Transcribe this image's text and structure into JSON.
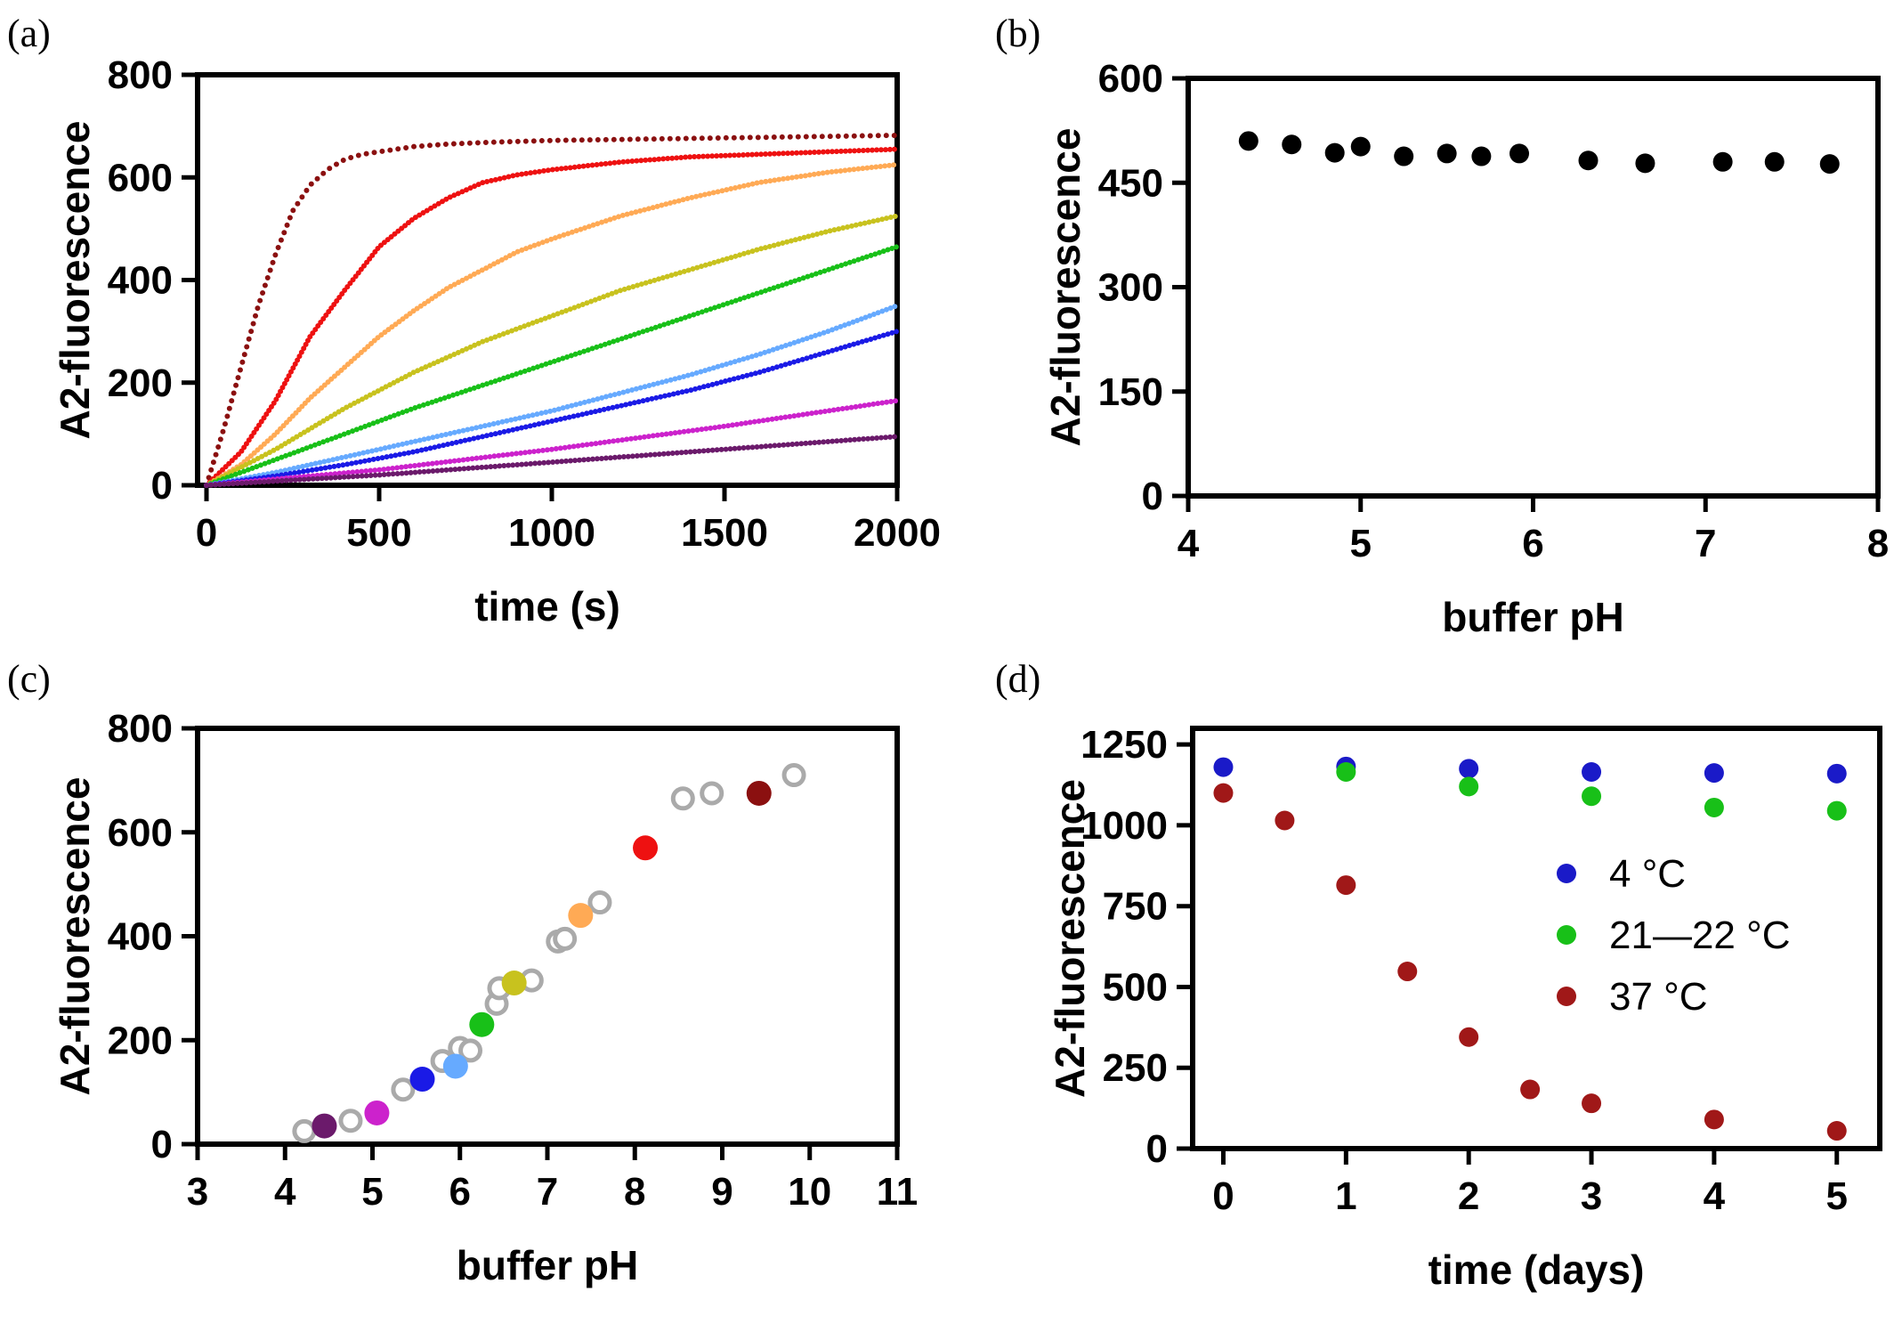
{
  "figure": {
    "panels": [
      {
        "label": "(a)"
      },
      {
        "label": "(b)"
      },
      {
        "label": "(c)"
      },
      {
        "label": "(d)"
      }
    ]
  },
  "chart_data": [
    {
      "panel": "(a)",
      "type": "line",
      "xlabel": "time (s)",
      "ylabel": "A2-fluorescence",
      "xlim": [
        0,
        2000
      ],
      "ylim": [
        0,
        800
      ],
      "xticks": [
        0,
        500,
        1000,
        1500,
        2000
      ],
      "yticks": [
        0,
        200,
        400,
        600,
        800
      ],
      "grid": false,
      "series": [
        {
          "color": "#8b1010",
          "x": [
            0,
            50,
            100,
            150,
            200,
            250,
            300,
            350,
            400,
            450,
            500,
            600,
            700,
            800,
            900,
            1000,
            1200,
            1400,
            1600,
            1800,
            2000
          ],
          "values": [
            0,
            110,
            230,
            350,
            450,
            535,
            585,
            615,
            635,
            645,
            650,
            660,
            665,
            668,
            670,
            672,
            674,
            676,
            678,
            680,
            682
          ]
        },
        {
          "color": "#ee1111",
          "x": [
            0,
            100,
            200,
            300,
            400,
            500,
            600,
            700,
            800,
            900,
            1000,
            1200,
            1400,
            1600,
            1800,
            2000
          ],
          "values": [
            0,
            65,
            165,
            290,
            380,
            465,
            520,
            560,
            590,
            605,
            615,
            630,
            640,
            645,
            650,
            655
          ]
        },
        {
          "color": "#ffaa55",
          "x": [
            0,
            100,
            200,
            300,
            400,
            500,
            600,
            700,
            800,
            900,
            1000,
            1200,
            1400,
            1600,
            1800,
            2000
          ],
          "values": [
            0,
            40,
            100,
            170,
            230,
            290,
            340,
            385,
            420,
            455,
            480,
            525,
            560,
            590,
            610,
            625
          ]
        },
        {
          "color": "#c8c21e",
          "x": [
            0,
            200,
            400,
            600,
            800,
            1000,
            1200,
            1400,
            1600,
            1800,
            2000
          ],
          "values": [
            0,
            70,
            150,
            220,
            280,
            330,
            380,
            420,
            460,
            495,
            525
          ]
        },
        {
          "color": "#18c018",
          "x": [
            0,
            200,
            400,
            600,
            800,
            1000,
            1200,
            1400,
            1600,
            1800,
            2000
          ],
          "values": [
            0,
            50,
            100,
            150,
            195,
            240,
            285,
            330,
            375,
            420,
            465
          ]
        },
        {
          "color": "#66aaff",
          "x": [
            0,
            200,
            400,
            600,
            800,
            1000,
            1200,
            1400,
            1600,
            1800,
            2000
          ],
          "values": [
            0,
            25,
            55,
            85,
            115,
            145,
            180,
            215,
            255,
            300,
            350
          ]
        },
        {
          "color": "#1a1ae6",
          "x": [
            0,
            200,
            400,
            600,
            800,
            1000,
            1200,
            1400,
            1600,
            1800,
            2000
          ],
          "values": [
            0,
            18,
            40,
            65,
            95,
            125,
            155,
            185,
            220,
            260,
            300
          ]
        },
        {
          "color": "#cc22cc",
          "x": [
            0,
            500,
            1000,
            1500,
            2000
          ],
          "values": [
            0,
            30,
            70,
            115,
            165
          ]
        },
        {
          "color": "#6b1a6b",
          "x": [
            0,
            500,
            1000,
            1500,
            2000
          ],
          "values": [
            0,
            20,
            45,
            70,
            95
          ]
        }
      ]
    },
    {
      "panel": "(b)",
      "type": "scatter",
      "xlabel": "buffer pH",
      "ylabel": "A2-fluorescence",
      "xlim": [
        4,
        8
      ],
      "ylim": [
        0,
        600
      ],
      "xticks": [
        4,
        5,
        6,
        7,
        8
      ],
      "yticks": [
        0,
        150,
        300,
        450,
        600
      ],
      "grid": false,
      "series": [
        {
          "color": "#000000",
          "x": [
            4.35,
            4.6,
            4.85,
            5.0,
            5.25,
            5.5,
            5.7,
            5.92,
            6.32,
            6.65,
            7.1,
            7.4,
            7.72
          ],
          "values": [
            510,
            505,
            493,
            502,
            488,
            492,
            488,
            492,
            482,
            478,
            480,
            480,
            477
          ]
        }
      ]
    },
    {
      "panel": "(c)",
      "type": "scatter",
      "xlabel": "buffer pH",
      "ylabel": "A2-fluorescence",
      "xlim": [
        3,
        11
      ],
      "ylim": [
        0,
        800
      ],
      "xticks": [
        3,
        4,
        5,
        6,
        7,
        8,
        9,
        10,
        11
      ],
      "yticks": [
        0,
        200,
        400,
        600,
        800
      ],
      "grid": false,
      "series": [
        {
          "color": "#aaaaaa",
          "hollow": true,
          "x": [
            4.22,
            4.75,
            5.35,
            5.8,
            6.0,
            6.12,
            6.42,
            6.45,
            6.82,
            7.12,
            7.2,
            7.6,
            8.55,
            8.88,
            9.82
          ],
          "values": [
            25,
            45,
            105,
            160,
            185,
            180,
            270,
            300,
            315,
            390,
            395,
            465,
            665,
            675,
            710
          ]
        },
        {
          "color": "#6b1a6b",
          "x": [
            4.45
          ],
          "values": [
            35
          ]
        },
        {
          "color": "#cc22cc",
          "x": [
            5.05
          ],
          "values": [
            60
          ]
        },
        {
          "color": "#66aaff",
          "x": [
            5.95
          ],
          "values": [
            150
          ]
        },
        {
          "color": "#1a1ae6",
          "x": [
            5.57
          ],
          "values": [
            125
          ]
        },
        {
          "color": "#18c018",
          "x": [
            6.25
          ],
          "values": [
            230
          ]
        },
        {
          "color": "#c8c21e",
          "x": [
            6.62
          ],
          "values": [
            310
          ]
        },
        {
          "color": "#ffaa55",
          "x": [
            7.38
          ],
          "values": [
            440
          ]
        },
        {
          "color": "#ee1111",
          "x": [
            8.12
          ],
          "values": [
            570
          ]
        },
        {
          "color": "#8b1010",
          "x": [
            9.42
          ],
          "values": [
            675
          ]
        }
      ]
    },
    {
      "panel": "(d)",
      "type": "scatter",
      "xlabel": "time (days)",
      "ylabel": "A2-fluorescence",
      "xlim": [
        -0.25,
        5.35
      ],
      "ylim": [
        0,
        1300
      ],
      "xticks": [
        0,
        1,
        2,
        3,
        4,
        5
      ],
      "yticks": [
        0,
        250,
        500,
        750,
        1000,
        1250
      ],
      "grid": false,
      "legend": {
        "position": "center-right"
      },
      "series": [
        {
          "name": "4 °C",
          "color": "#1a1ac8",
          "x": [
            0,
            1,
            2,
            3,
            4,
            5
          ],
          "values": [
            1180,
            1182,
            1175,
            1165,
            1162,
            1160
          ]
        },
        {
          "name": "21—22 °C",
          "color": "#18c018",
          "x": [
            1,
            2,
            3,
            4,
            5
          ],
          "values": [
            1165,
            1120,
            1090,
            1055,
            1045
          ]
        },
        {
          "name": "37 °C",
          "color": "#a01818",
          "x": [
            0,
            0.5,
            1,
            1.5,
            2,
            2.5,
            3,
            4,
            5
          ],
          "values": [
            1100,
            1015,
            815,
            548,
            345,
            183,
            140,
            90,
            55
          ]
        }
      ]
    }
  ]
}
